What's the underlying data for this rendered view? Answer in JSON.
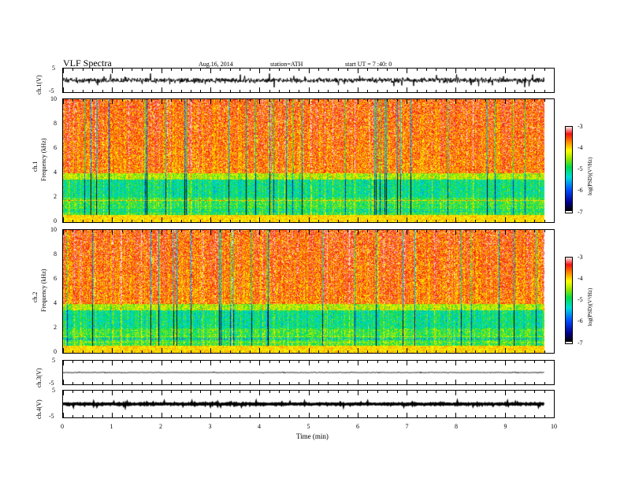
{
  "header": {
    "title": "VLF  Spectra",
    "date": "Aug.16, 2014",
    "station": "station=ATH",
    "start": "start  UT  =   7 :40: 0"
  },
  "panels": {
    "ch1_wave": {
      "ylabel": "ch.1(V)",
      "ticks": [
        "5",
        "-5"
      ]
    },
    "ch1_spec": {
      "ylabel_line1": "ch.1",
      "ylabel_line2": "Frequency  (kHz)",
      "ticks": [
        "10",
        "8",
        "6",
        "4",
        "2",
        "0"
      ],
      "cbar_label": "log(PSD)(V²/Hz)",
      "cbar_ticks": [
        "-3",
        "-4",
        "-5",
        "-6",
        "-7"
      ]
    },
    "ch2_spec": {
      "ylabel_line1": "ch.2",
      "ylabel_line2": "Frequency  (kHz)",
      "ticks": [
        "10",
        "8",
        "6",
        "4",
        "2",
        "0"
      ],
      "cbar_label": "log(PSD)(V²/Hz)",
      "cbar_ticks": [
        "-3",
        "-4",
        "-5",
        "-6",
        "-7"
      ]
    },
    "ch3_wave": {
      "ylabel": "ch.3(V)",
      "ticks": [
        "5",
        "-5"
      ]
    },
    "ch4_wave": {
      "ylabel": "ch.4(V)",
      "ticks": [
        "5",
        "-5"
      ]
    }
  },
  "xaxis": {
    "label": "Time  (min)",
    "ticks": [
      "0",
      "1",
      "2",
      "3",
      "4",
      "5",
      "6",
      "7",
      "8",
      "9",
      "10"
    ]
  },
  "chart_data": [
    {
      "type": "line",
      "title": "VLF  Spectra",
      "ylabel": "ch.1(V)",
      "xlabel": "Time  (min)",
      "xlim": [
        0,
        10
      ],
      "ylim": [
        -5,
        5
      ],
      "data_end_min": 9.8,
      "note_values": "broadband noise roughly between -1 and 1 V with spikes"
    },
    {
      "type": "heatmap",
      "ylabel": "ch.1 Frequency (kHz)",
      "xlim": [
        0,
        10
      ],
      "ylim": [
        0,
        10
      ],
      "colorbar": {
        "label": "log(PSD)(V²/Hz)",
        "range": [
          -7,
          -3
        ]
      },
      "features": "high PSD (~-3.5) above 4 kHz, green/blue band 2-3.5 kHz, horizontal lines below 2 kHz"
    },
    {
      "type": "heatmap",
      "ylabel": "ch.2 Frequency (kHz)",
      "xlim": [
        0,
        10
      ],
      "ylim": [
        0,
        10
      ],
      "colorbar": {
        "label": "log(PSD)(V²/Hz)",
        "range": [
          -7,
          -3
        ]
      }
    },
    {
      "type": "line",
      "ylabel": "ch.3(V)",
      "xlim": [
        0,
        10
      ],
      "ylim": [
        -5,
        5
      ],
      "level": 0
    },
    {
      "type": "line",
      "ylabel": "ch.4(V)",
      "xlim": [
        0,
        10
      ],
      "ylim": [
        -5,
        5
      ],
      "level": 0
    }
  ]
}
